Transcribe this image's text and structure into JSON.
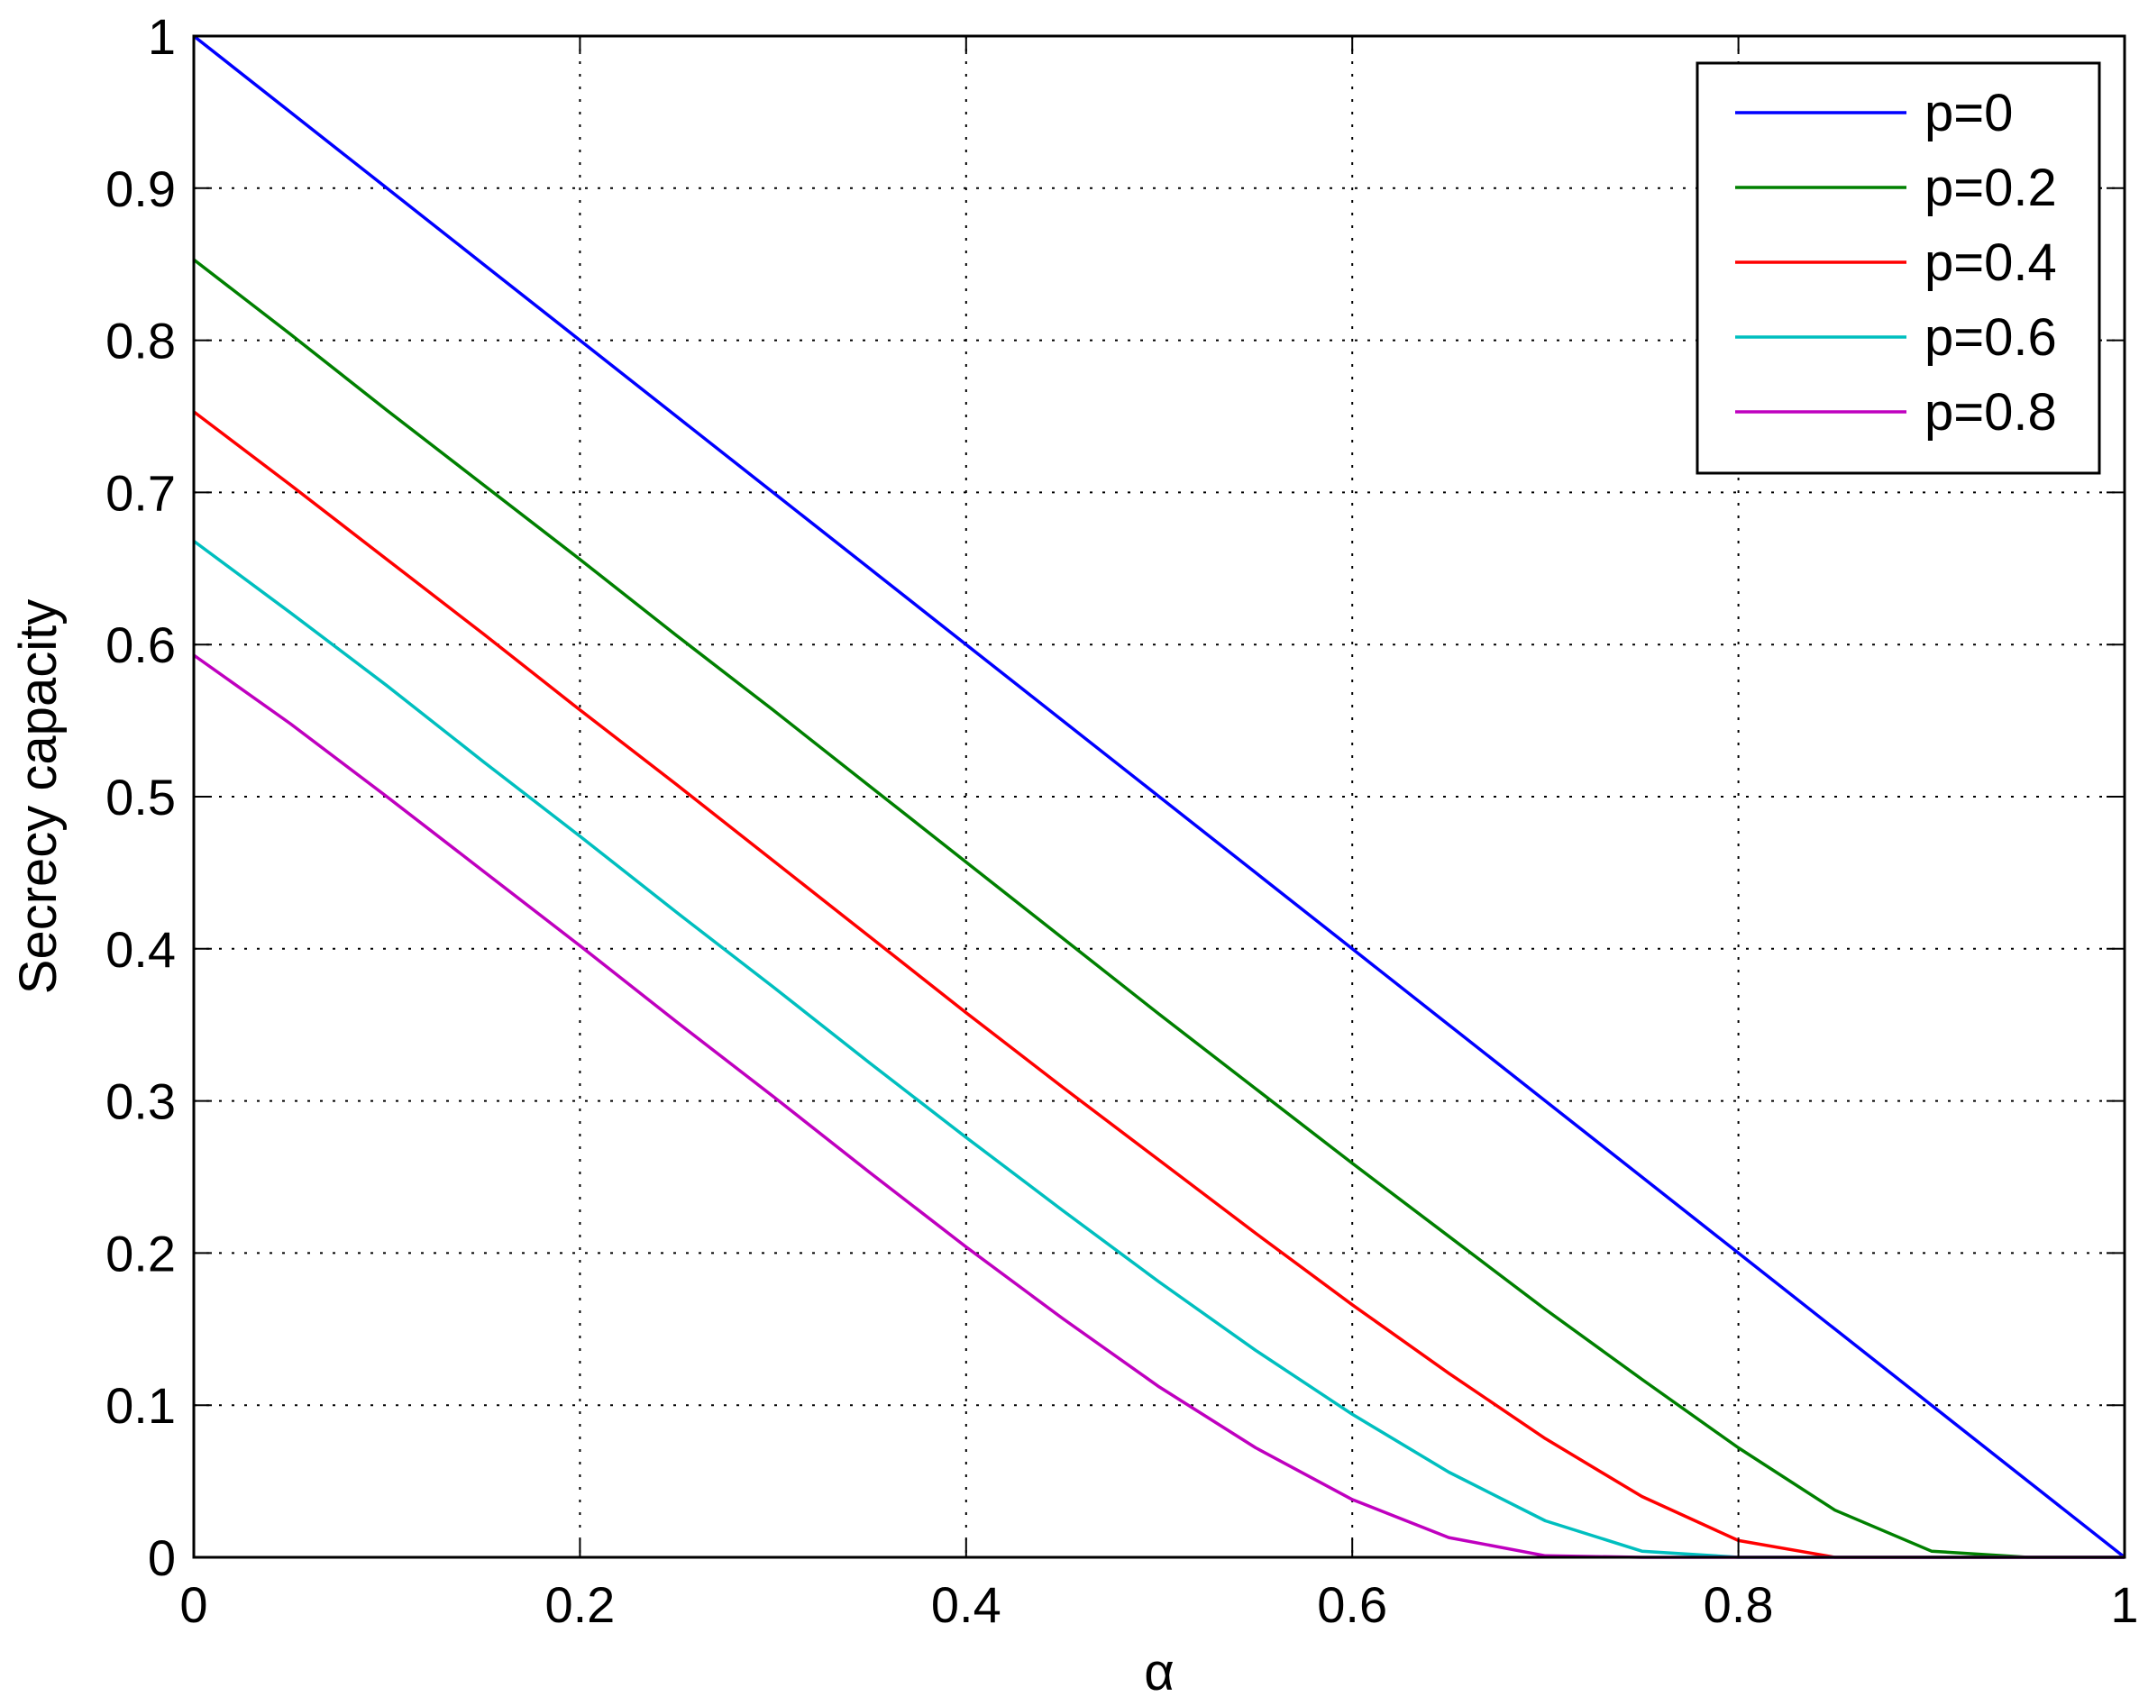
{
  "chart_data": {
    "type": "line",
    "title": "",
    "xlabel": "α",
    "ylabel": "Secrecy capacity",
    "xlim": [
      0,
      1
    ],
    "ylim": [
      0,
      1
    ],
    "x_ticks": [
      "0",
      "0.2",
      "0.4",
      "0.6",
      "0.8",
      "1"
    ],
    "y_ticks": [
      "0",
      "0.1",
      "0.2",
      "0.3",
      "0.4",
      "0.5",
      "0.6",
      "0.7",
      "0.8",
      "0.9",
      "1"
    ],
    "grid": true,
    "legend_position": "top-right",
    "x": [
      0,
      0.05,
      0.1,
      0.15,
      0.2,
      0.25,
      0.3,
      0.35,
      0.4,
      0.45,
      0.5,
      0.55,
      0.6,
      0.65,
      0.7,
      0.75,
      0.8,
      0.85,
      0.9,
      0.95,
      1
    ],
    "series": [
      {
        "name": "p=0",
        "color": "#0000ff",
        "values": [
          1.0,
          0.95,
          0.9,
          0.85,
          0.8,
          0.75,
          0.7,
          0.65,
          0.6,
          0.55,
          0.5,
          0.45,
          0.4,
          0.35,
          0.3,
          0.25,
          0.2,
          0.15,
          0.1,
          0.05,
          0.0
        ]
      },
      {
        "name": "p=0.2",
        "color": "#008000",
        "values": [
          0.853,
          0.804,
          0.754,
          0.705,
          0.656,
          0.606,
          0.557,
          0.507,
          0.457,
          0.407,
          0.357,
          0.308,
          0.259,
          0.211,
          0.163,
          0.117,
          0.072,
          0.031,
          0.004,
          0.0,
          0.0
        ]
      },
      {
        "name": "p=0.4",
        "color": "#ff0000",
        "values": [
          0.753,
          0.705,
          0.656,
          0.607,
          0.557,
          0.508,
          0.458,
          0.408,
          0.358,
          0.309,
          0.261,
          0.213,
          0.166,
          0.121,
          0.078,
          0.04,
          0.011,
          0.0,
          0.0,
          0.0,
          0.0
        ]
      },
      {
        "name": "p=0.6",
        "color": "#00bfbf",
        "values": [
          0.668,
          0.621,
          0.573,
          0.523,
          0.474,
          0.424,
          0.375,
          0.325,
          0.276,
          0.228,
          0.181,
          0.136,
          0.094,
          0.056,
          0.024,
          0.004,
          0.0,
          0.0,
          0.0,
          0.0,
          0.0
        ]
      },
      {
        "name": "p=0.8",
        "color": "#bf00bf",
        "values": [
          0.593,
          0.548,
          0.5,
          0.451,
          0.402,
          0.352,
          0.303,
          0.253,
          0.204,
          0.157,
          0.112,
          0.072,
          0.038,
          0.013,
          0.001,
          0.0,
          0.0,
          0.0,
          0.0,
          0.0,
          0.0
        ]
      }
    ]
  }
}
